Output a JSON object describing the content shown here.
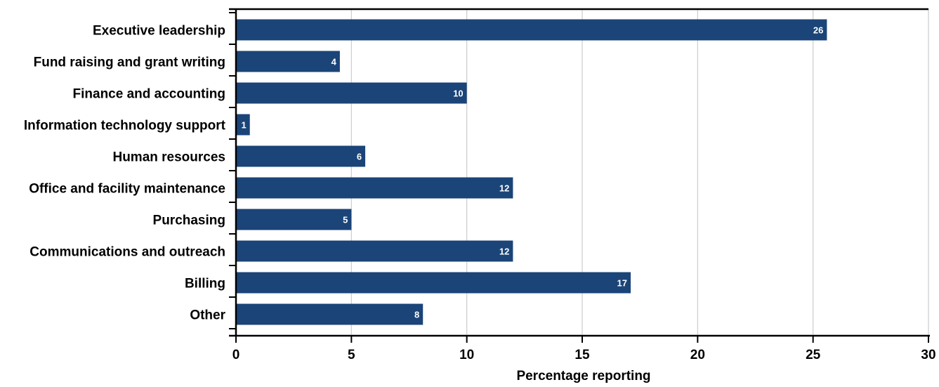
{
  "chart_data": {
    "type": "bar",
    "orientation": "horizontal",
    "categories": [
      "Executive leadership",
      "Fund raising and grant writing",
      "Finance and accounting",
      "Information technology support",
      "Human resources",
      "Office and facility maintenance",
      "Purchasing",
      "Communications and outreach",
      "Billing",
      "Other"
    ],
    "values": [
      25.6,
      4.5,
      10.0,
      0.6,
      5.6,
      12.0,
      5.0,
      12.0,
      17.1,
      8.1
    ],
    "data_labels": [
      "26",
      "4",
      "10",
      "1",
      "6",
      "12",
      "5",
      "12",
      "17",
      "8"
    ],
    "title": "",
    "xlabel": "Percentage reporting",
    "ylabel": "",
    "xlim": [
      0,
      30
    ],
    "xticks": [
      0,
      5,
      10,
      15,
      20,
      25,
      30
    ],
    "xtick_labels": [
      "0",
      "5",
      "10",
      "15",
      "20",
      "25",
      "30"
    ],
    "grid": "vertical",
    "legend": "none",
    "colors": {
      "bar": "#1b4478",
      "data_label": "#ffffff",
      "grid": "#cccccc",
      "axis": "#000000",
      "text": "#000000"
    }
  }
}
